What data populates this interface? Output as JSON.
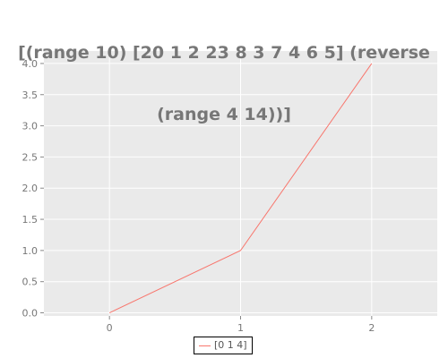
{
  "chart_data": {
    "type": "line",
    "title": "[(range 10) [20 1 2 23 8 3 7 4 6 5] (reverse (range 4 14))]",
    "title_lines": [
      "[(range 10) [20 1 2 23 8 3 7 4 6 5] (reverse",
      "(range 4 14))]"
    ],
    "xlabel": "",
    "ylabel": "",
    "x": [
      0,
      1,
      2
    ],
    "series": [
      {
        "name": "[0 1 4]",
        "values": [
          0,
          1,
          4
        ],
        "color": "#f8766d"
      }
    ],
    "xlim": [
      -0.5,
      2.5
    ],
    "ylim": [
      -0.05,
      4.2
    ],
    "x_ticks": [
      0,
      1,
      2
    ],
    "x_tick_labels": [
      "0",
      "1",
      "2"
    ],
    "y_ticks": [
      0,
      0.5,
      1,
      1.5,
      2,
      2.5,
      3,
      3.5,
      4
    ],
    "y_tick_labels": [
      "0.0",
      "0.5",
      "1.0",
      "1.5",
      "2.0",
      "2.5",
      "3.0",
      "3.5",
      "4.0"
    ],
    "grid": true,
    "legend_position": "bottom-center",
    "colors": {
      "panel_background": "#eaeaea",
      "grid": "#ffffff",
      "title": "#777777",
      "tick_label": "#777777",
      "tick": "#888888"
    }
  }
}
